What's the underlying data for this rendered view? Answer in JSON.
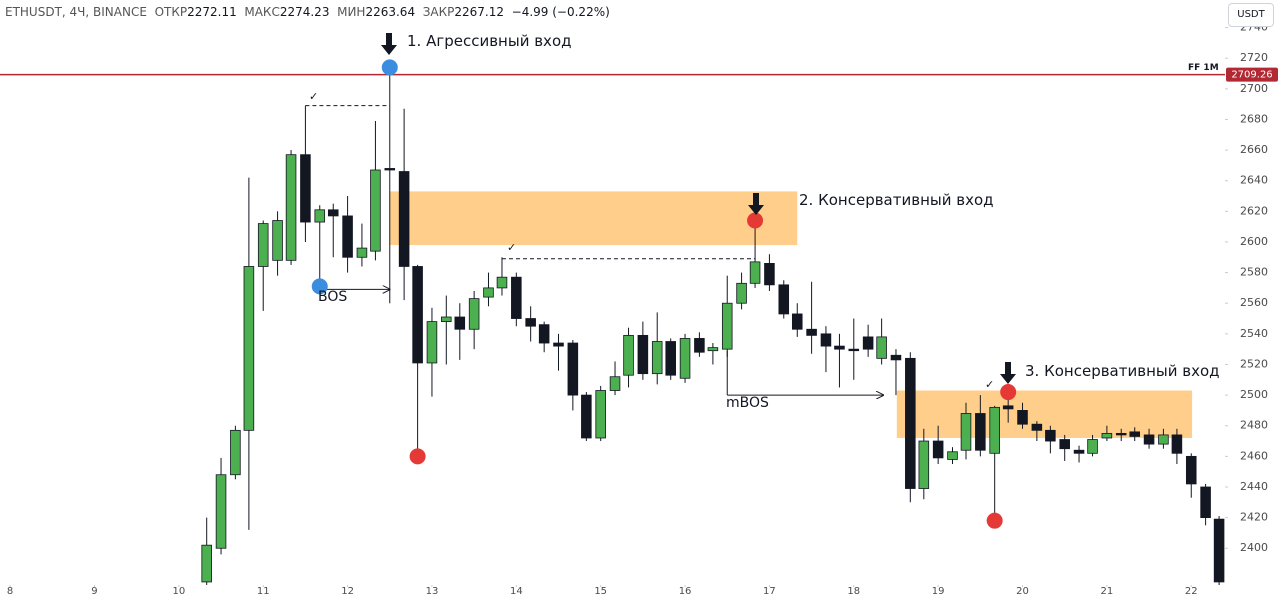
{
  "chart_data": {
    "type": "candlestick",
    "header": {
      "symbol": "ETHUSDT, 4Ч, BINANCE",
      "open_label": "ОТКР",
      "open": "2272.11",
      "high_label": "МАКС",
      "high": "2274.23",
      "low_label": "МИН",
      "low": "2263.64",
      "close_label": "ЗАКР",
      "close": "2267.12",
      "change": "−4.99 (−0.22%)"
    },
    "currency": "USDT",
    "x": [
      10.33,
      10.5,
      10.67,
      10.83,
      11,
      11.17,
      11.33,
      11.5,
      11.67,
      11.83,
      12,
      12.17,
      12.33,
      12.5,
      12.67,
      12.83,
      13,
      13.17,
      13.33,
      13.5,
      13.67,
      13.83,
      14,
      14.17,
      14.33,
      14.5,
      14.67,
      14.83,
      15,
      15.17,
      15.33,
      15.5,
      15.67,
      15.83,
      16,
      16.17,
      16.33,
      16.5,
      16.67,
      16.83,
      17,
      17.17,
      17.33,
      17.5,
      17.67,
      17.83,
      18,
      18.17,
      18.33,
      18.5,
      18.67,
      18.83,
      19,
      19.17,
      19.33,
      19.5,
      19.67,
      19.83,
      20,
      20.17,
      20.33,
      20.5,
      20.67,
      20.83,
      21,
      21.17,
      21.33,
      21.5,
      21.67,
      21.83,
      22,
      22.17,
      22.33
    ],
    "open": [
      2378,
      2400,
      2448,
      2477,
      2584,
      2588,
      2588,
      2657,
      2613,
      2621,
      2617,
      2590,
      2594,
      2648,
      2646,
      2584,
      2521,
      2548,
      2551,
      2543,
      2564,
      2570,
      2577,
      2550,
      2546,
      2534,
      2534,
      2500,
      2472,
      2503,
      2513,
      2539,
      2514,
      2535,
      2511,
      2537,
      2529,
      2530,
      2560,
      2573,
      2586,
      2572,
      2553,
      2543,
      2540,
      2532,
      2530,
      2538,
      2524,
      2526,
      2524,
      2439,
      2470,
      2458,
      2464,
      2488,
      2462,
      2493,
      2490,
      2481,
      2477,
      2471,
      2464,
      2462,
      2472,
      2475,
      2476,
      2474,
      2468,
      2474,
      2460,
      2440,
      2419
    ],
    "high": [
      2420,
      2459,
      2480,
      2642,
      2614,
      2620,
      2660,
      2689,
      2624,
      2625,
      2630,
      2612,
      2679,
      2714,
      2687,
      2585,
      2557,
      2565,
      2560,
      2568,
      2580,
      2590,
      2580,
      2558,
      2548,
      2540,
      2536,
      2502,
      2506,
      2522,
      2544,
      2548,
      2554,
      2537,
      2540,
      2541,
      2534,
      2578,
      2580,
      2614,
      2592,
      2575,
      2560,
      2574,
      2545,
      2540,
      2550,
      2546,
      2550,
      2530,
      2528,
      2478,
      2480,
      2466,
      2495,
      2500,
      2493,
      2503,
      2495,
      2483,
      2480,
      2474,
      2467,
      2474,
      2480,
      2478,
      2479,
      2478,
      2478,
      2478,
      2462,
      2442,
      2421
    ],
    "low": [
      2376,
      2396,
      2445,
      2412,
      2555,
      2578,
      2585,
      2600,
      2571,
      2590,
      2580,
      2584,
      2588,
      2560,
      2562,
      2460,
      2499,
      2520,
      2523,
      2530,
      2558,
      2565,
      2545,
      2535,
      2528,
      2516,
      2490,
      2470,
      2470,
      2500,
      2505,
      2510,
      2507,
      2510,
      2508,
      2525,
      2520,
      2525,
      2556,
      2570,
      2568,
      2550,
      2538,
      2527,
      2515,
      2505,
      2510,
      2525,
      2520,
      2500,
      2430,
      2432,
      2455,
      2455,
      2458,
      2460,
      2418,
      2482,
      2478,
      2470,
      2462,
      2457,
      2456,
      2460,
      2470,
      2470,
      2470,
      2465,
      2465,
      2455,
      2433,
      2415,
      2376
    ],
    "close": [
      2402,
      2448,
      2477,
      2584,
      2612,
      2614,
      2657,
      2613,
      2621,
      2617,
      2590,
      2596,
      2647,
      2647,
      2584,
      2521,
      2548,
      2551,
      2543,
      2563,
      2570,
      2577,
      2550,
      2545,
      2534,
      2532,
      2500,
      2472,
      2503,
      2512,
      2539,
      2514,
      2535,
      2513,
      2537,
      2528,
      2531,
      2560,
      2573,
      2587,
      2572,
      2553,
      2543,
      2539,
      2532,
      2530,
      2529,
      2530,
      2538,
      2523,
      2439,
      2470,
      2459,
      2463,
      2488,
      2464,
      2492,
      2491,
      2481,
      2477,
      2470,
      2465,
      2462,
      2471,
      2475,
      2474,
      2473,
      2468,
      2474,
      2462,
      2442,
      2420,
      2378
    ],
    "up_color": "#4caf50",
    "down_color": "#131722",
    "xlim": [
      7.88,
      22.4
    ],
    "xticks": [
      8,
      9,
      10,
      11,
      12,
      13,
      14,
      15,
      16,
      17,
      18,
      19,
      20,
      21,
      22
    ],
    "ylim": [
      2376,
      2758
    ],
    "yticks": [
      2400,
      2420,
      2440,
      2460,
      2480,
      2500,
      2520,
      2540,
      2560,
      2580,
      2600,
      2620,
      2640,
      2660,
      2680,
      2700,
      2720,
      2740
    ],
    "grid": false,
    "price_line": 2709.26,
    "price_line_name": "FF 1M",
    "price_line_color": "#b22833",
    "zones": [
      {
        "x": [
          12.5,
          17.33
        ],
        "y": [
          2598,
          2633
        ]
      },
      {
        "x": [
          18.51,
          22.01
        ],
        "y": [
          2472,
          2503
        ]
      }
    ],
    "zone_color": "#ffc97d",
    "points": [
      {
        "x": 12.5,
        "y": 2714,
        "color": "#3b8de0"
      },
      {
        "x": 11.67,
        "y": 2571,
        "color": "#3b8de0"
      },
      {
        "x": 12.83,
        "y": 2460,
        "color": "#e53935"
      },
      {
        "x": 16.83,
        "y": 2614,
        "color": "#e53935"
      },
      {
        "x": 19.83,
        "y": 2502,
        "color": "#e53935"
      },
      {
        "x": 19.67,
        "y": 2418,
        "color": "#e53935"
      }
    ],
    "lines": [
      {
        "x": [
          11.5,
          12.5
        ],
        "y": [
          2689,
          2689
        ],
        "style": "dashed"
      },
      {
        "x": [
          13.83,
          16.83
        ],
        "y": [
          2589,
          2589
        ],
        "style": "dashed"
      },
      {
        "x": [
          11.67,
          12.5
        ],
        "y": [
          2569,
          2569
        ],
        "style": "arrow"
      },
      {
        "x": [
          16.5,
          16.5
        ],
        "y": [
          2529,
          2500
        ],
        "style": "solid"
      },
      {
        "x": [
          16.5,
          18.35
        ],
        "y": [
          2500,
          2500
        ],
        "style": "arrow"
      }
    ],
    "labels": [
      "1. Агрессивный вход",
      "2. Консервативный вход",
      "3. Консервативный вход",
      "BOS",
      "mBOS"
    ],
    "checks": [
      "✓",
      "✓",
      "✓"
    ]
  }
}
